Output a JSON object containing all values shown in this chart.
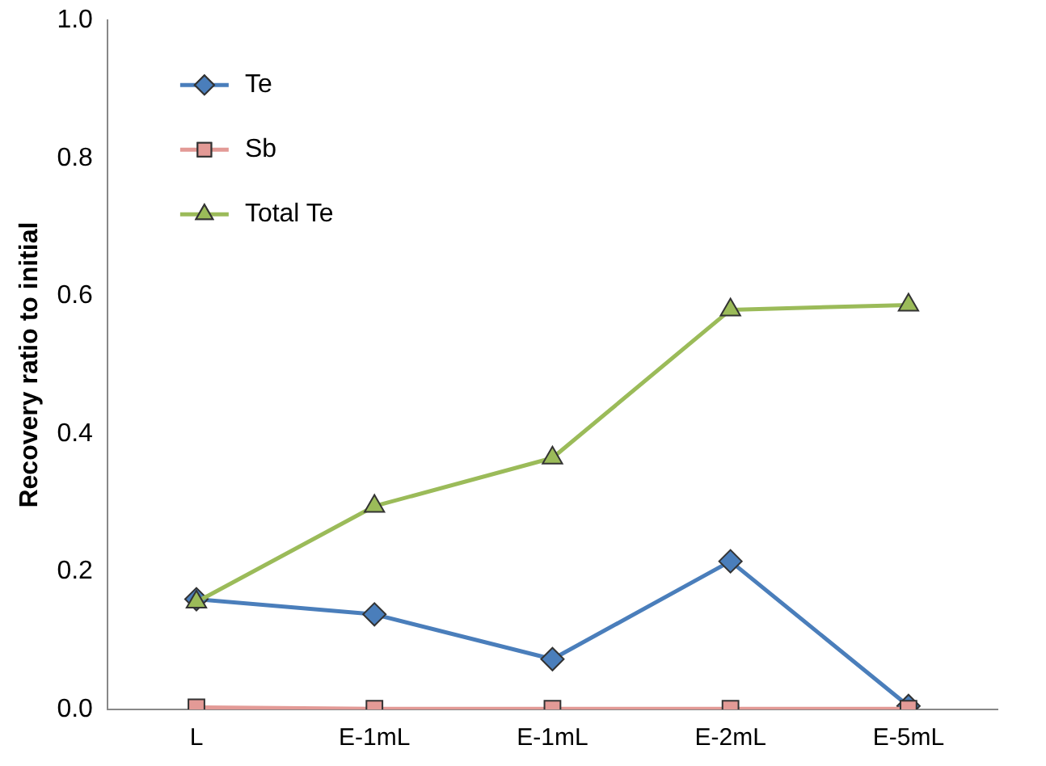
{
  "chart_data": {
    "type": "line",
    "ylabel": "Recovery ratio to initial",
    "categories": [
      "L",
      "E-1mL",
      "E-1mL",
      "E-2mL",
      "E-5mL"
    ],
    "series": [
      {
        "name": "Te",
        "color": "#4a7ebb",
        "marker": "diamond",
        "values": [
          0.16,
          0.138,
          0.073,
          0.215,
          0.005
        ]
      },
      {
        "name": "Sb",
        "color": "#e39a96",
        "marker": "square",
        "values": [
          0.003,
          0.001,
          0.001,
          0.001,
          0.001
        ]
      },
      {
        "name": "Total Te",
        "color": "#9bbb59",
        "marker": "triangle",
        "values": [
          0.156,
          0.295,
          0.365,
          0.58,
          0.587
        ]
      }
    ],
    "ylim": [
      0,
      1
    ],
    "yticks": [
      {
        "value": 0,
        "label": "0.0"
      },
      {
        "value": 0.2,
        "label": "0.2"
      },
      {
        "value": 0.4,
        "label": "0.4"
      },
      {
        "value": 0.6,
        "label": "0.6"
      },
      {
        "value": 0.8,
        "label": "0.8"
      },
      {
        "value": 1,
        "label": "1.0"
      }
    ],
    "grid": false,
    "legend": "top left",
    "line_style": "solid"
  }
}
